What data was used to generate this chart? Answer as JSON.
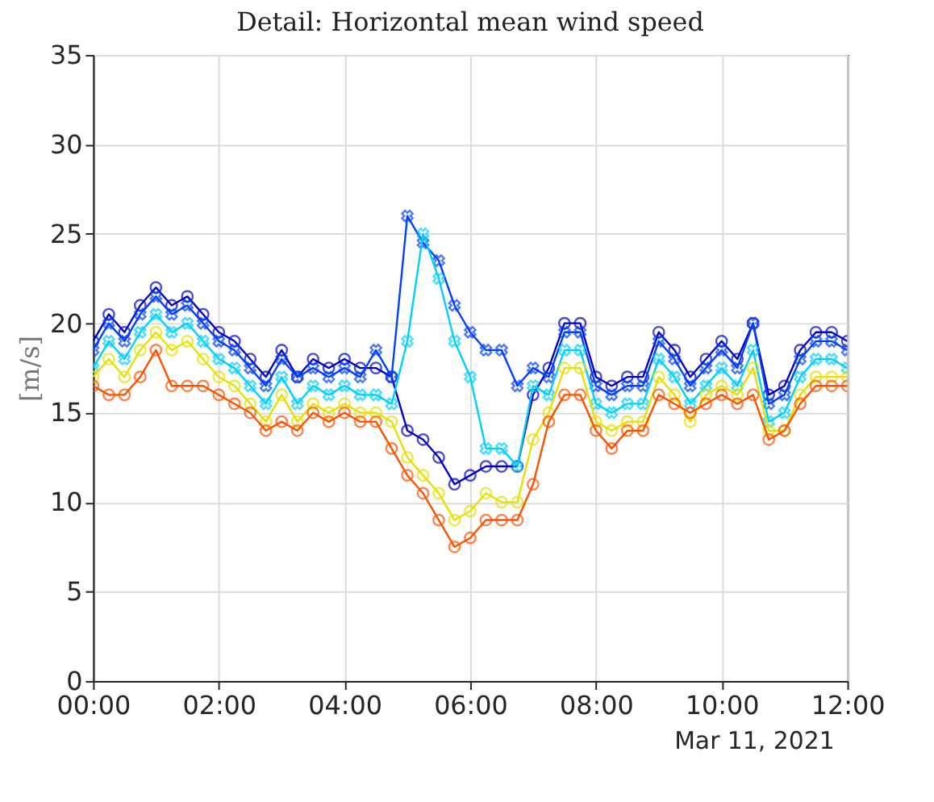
{
  "chart_data": {
    "type": "line",
    "title": "Detail: Horizontal mean wind speed",
    "ylabel": "[m/s]",
    "x": [
      0,
      0.25,
      0.5,
      0.75,
      1,
      1.25,
      1.5,
      1.75,
      2,
      2.25,
      2.5,
      2.75,
      3,
      3.25,
      3.5,
      3.75,
      4,
      4.25,
      4.5,
      4.75,
      5,
      5.25,
      5.5,
      5.75,
      6,
      6.25,
      6.5,
      6.75,
      7,
      7.25,
      7.5,
      7.75,
      8,
      8.25,
      8.5,
      8.75,
      9,
      9.25,
      9.5,
      9.75,
      10,
      10.25,
      10.5,
      10.75,
      11,
      11.25,
      11.5,
      11.75,
      12
    ],
    "series": [
      {
        "color": "#0000c8",
        "marker": "circle",
        "values": [
          19,
          20.5,
          19.5,
          21,
          22,
          21,
          21.5,
          20.5,
          19.5,
          19,
          18,
          17,
          18.5,
          17,
          18,
          17.5,
          18,
          17.5,
          17.5,
          17,
          14,
          13.5,
          12.5,
          11,
          11.5,
          12,
          12,
          12,
          16,
          17.5,
          20,
          20,
          17,
          16.5,
          17,
          17,
          19.5,
          18.5,
          17,
          18,
          19,
          18,
          20,
          16,
          16.5,
          18.5,
          19.5,
          19.5,
          19
        ]
      },
      {
        "color": "#0040ff",
        "marker": "cross",
        "values": [
          18.5,
          20,
          19,
          20.5,
          21.5,
          20.5,
          21,
          20,
          19,
          18.5,
          17.5,
          16.5,
          18,
          17,
          17.5,
          17,
          17.5,
          17,
          18.5,
          17,
          26,
          24.5,
          23.5,
          21,
          19.5,
          18.5,
          18.5,
          16.5,
          17.5,
          17,
          19.5,
          19.5,
          16.5,
          16,
          16.5,
          16.5,
          19,
          18,
          16.5,
          17.5,
          18.5,
          17.5,
          20,
          15.5,
          16,
          18,
          19,
          19,
          18.5
        ]
      },
      {
        "color": "#00d0ff",
        "marker": "cross",
        "values": [
          17.5,
          19,
          18,
          19.5,
          20.5,
          19.5,
          20,
          19,
          18,
          17.5,
          16.5,
          15.5,
          17,
          15.5,
          16.5,
          16,
          16.5,
          16,
          16,
          15.5,
          19,
          25,
          22.5,
          19,
          17,
          13,
          13,
          12,
          16.5,
          16,
          18.5,
          18.5,
          15.5,
          15,
          15.5,
          15.5,
          18,
          17,
          15.5,
          16.5,
          17.5,
          16.5,
          18.5,
          14.5,
          15,
          17,
          18,
          18,
          17.5
        ]
      },
      {
        "color": "#e8e000",
        "marker": "circle",
        "values": [
          17,
          18,
          17,
          18.5,
          19.5,
          18.5,
          19,
          18,
          17,
          16.5,
          15.5,
          14.5,
          16,
          14.5,
          15.5,
          15,
          15.5,
          15,
          15,
          14.5,
          12.5,
          11.5,
          10.5,
          9,
          9.5,
          10.5,
          10,
          10,
          13.5,
          15,
          17.5,
          17.5,
          14.5,
          14,
          14.5,
          14.5,
          17,
          16,
          14.5,
          16,
          16.5,
          16,
          17.5,
          14,
          14,
          16,
          17,
          17,
          17
        ]
      },
      {
        "color": "#ff5000",
        "marker": "circle",
        "values": [
          16.5,
          16,
          16,
          17,
          18.5,
          16.5,
          16.5,
          16.5,
          16,
          15.5,
          15,
          14,
          14.5,
          14,
          15,
          14.5,
          15,
          14.5,
          14.5,
          13,
          11.5,
          10.5,
          9,
          7.5,
          8,
          9,
          9,
          9,
          11,
          14.5,
          16,
          16,
          14,
          13,
          14,
          14,
          16,
          15.5,
          15,
          15.5,
          16,
          15.5,
          16,
          13.5,
          14,
          15.5,
          16.5,
          16.5,
          16.5
        ]
      }
    ],
    "xlim": [
      0,
      12
    ],
    "xticks": [
      {
        "value": 0,
        "label": "00:00"
      },
      {
        "value": 2,
        "label": "02:00"
      },
      {
        "value": 4,
        "label": "04:00"
      },
      {
        "value": 6,
        "label": "06:00"
      },
      {
        "value": 8,
        "label": "08:00"
      },
      {
        "value": 10,
        "label": "10:00"
      },
      {
        "value": 12,
        "label": "12:00"
      }
    ],
    "ylim": [
      0,
      35
    ],
    "yticks": [
      0,
      5,
      10,
      15,
      20,
      25,
      30,
      35
    ],
    "grid": true,
    "line_style": "solid",
    "annotations": [
      "Mar 11, 2021"
    ]
  }
}
